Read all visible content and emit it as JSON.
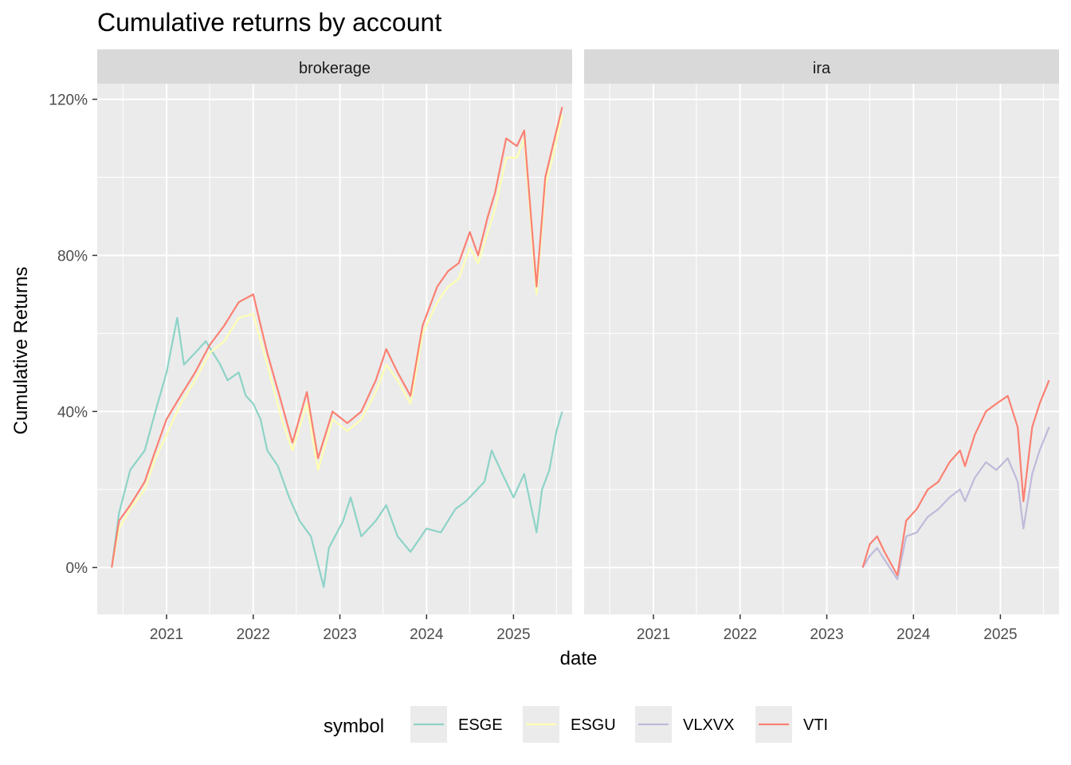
{
  "chart_data": {
    "type": "line",
    "title": "Cumulative returns by account",
    "xlabel": "date",
    "ylabel": "Cumulative Returns",
    "xlim": [
      "2020-03-15",
      "2025-09-05"
    ],
    "ylim": [
      -0.12,
      1.24
    ],
    "x_ticks": [
      "2021",
      "2022",
      "2023",
      "2024",
      "2025"
    ],
    "x_tick_dates": [
      "2021-01-01",
      "2022-01-01",
      "2023-01-01",
      "2024-01-01",
      "2025-01-01"
    ],
    "y_ticks": [
      0,
      0.4,
      0.8,
      1.2
    ],
    "y_tick_labels": [
      "0%",
      "40%",
      "80%",
      "120%"
    ],
    "grid": true,
    "legend": {
      "title": "symbol",
      "position": "bottom",
      "entries": [
        {
          "label": "ESGE",
          "color": "#8dd3c7"
        },
        {
          "label": "ESGU",
          "color": "#ffffb3"
        },
        {
          "label": "VLXVX",
          "color": "#bebada"
        },
        {
          "label": "VTI",
          "color": "#fb8072"
        }
      ]
    },
    "panels": [
      {
        "label": "brokerage",
        "series": [
          {
            "name": "ESGE",
            "color": "#8dd3c7",
            "points": [
              [
                "2020-05-15",
                0.0
              ],
              [
                "2020-06-15",
                0.14
              ],
              [
                "2020-08-01",
                0.25
              ],
              [
                "2020-10-01",
                0.3
              ],
              [
                "2020-11-15",
                0.4
              ],
              [
                "2021-01-01",
                0.5
              ],
              [
                "2021-02-15",
                0.64
              ],
              [
                "2021-03-15",
                0.52
              ],
              [
                "2021-05-01",
                0.55
              ],
              [
                "2021-06-15",
                0.58
              ],
              [
                "2021-08-15",
                0.52
              ],
              [
                "2021-09-15",
                0.48
              ],
              [
                "2021-11-01",
                0.5
              ],
              [
                "2021-12-01",
                0.44
              ],
              [
                "2022-01-01",
                0.42
              ],
              [
                "2022-02-01",
                0.38
              ],
              [
                "2022-03-01",
                0.3
              ],
              [
                "2022-04-15",
                0.26
              ],
              [
                "2022-06-01",
                0.18
              ],
              [
                "2022-07-15",
                0.12
              ],
              [
                "2022-09-01",
                0.08
              ],
              [
                "2022-10-25",
                -0.05
              ],
              [
                "2022-11-15",
                0.05
              ],
              [
                "2023-01-15",
                0.12
              ],
              [
                "2023-02-15",
                0.18
              ],
              [
                "2023-04-01",
                0.08
              ],
              [
                "2023-06-01",
                0.12
              ],
              [
                "2023-07-15",
                0.16
              ],
              [
                "2023-09-01",
                0.08
              ],
              [
                "2023-10-25",
                0.04
              ],
              [
                "2024-01-01",
                0.1
              ],
              [
                "2024-03-01",
                0.09
              ],
              [
                "2024-05-01",
                0.15
              ],
              [
                "2024-06-15",
                0.17
              ],
              [
                "2024-08-01",
                0.2
              ],
              [
                "2024-09-01",
                0.22
              ],
              [
                "2024-10-01",
                0.3
              ],
              [
                "2024-11-15",
                0.24
              ],
              [
                "2025-01-01",
                0.18
              ],
              [
                "2025-02-15",
                0.24
              ],
              [
                "2025-04-08",
                0.09
              ],
              [
                "2025-05-01",
                0.2
              ],
              [
                "2025-06-01",
                0.25
              ],
              [
                "2025-07-01",
                0.35
              ],
              [
                "2025-07-25",
                0.4
              ]
            ]
          },
          {
            "name": "ESGU",
            "color": "#ffffb3",
            "points": [
              [
                "2020-05-15",
                0.0
              ],
              [
                "2020-06-15",
                0.1
              ],
              [
                "2020-08-01",
                0.15
              ],
              [
                "2020-10-01",
                0.2
              ],
              [
                "2020-11-15",
                0.28
              ],
              [
                "2021-01-01",
                0.34
              ],
              [
                "2021-03-01",
                0.42
              ],
              [
                "2021-05-01",
                0.48
              ],
              [
                "2021-07-01",
                0.55
              ],
              [
                "2021-09-01",
                0.58
              ],
              [
                "2021-11-01",
                0.64
              ],
              [
                "2022-01-01",
                0.65
              ],
              [
                "2022-03-01",
                0.52
              ],
              [
                "2022-05-01",
                0.38
              ],
              [
                "2022-06-15",
                0.3
              ],
              [
                "2022-08-15",
                0.42
              ],
              [
                "2022-10-01",
                0.25
              ],
              [
                "2022-12-01",
                0.38
              ],
              [
                "2023-02-01",
                0.35
              ],
              [
                "2023-04-01",
                0.38
              ],
              [
                "2023-06-01",
                0.45
              ],
              [
                "2023-07-15",
                0.52
              ],
              [
                "2023-09-01",
                0.48
              ],
              [
                "2023-10-25",
                0.42
              ],
              [
                "2023-12-15",
                0.6
              ],
              [
                "2024-02-15",
                0.68
              ],
              [
                "2024-04-01",
                0.72
              ],
              [
                "2024-05-15",
                0.74
              ],
              [
                "2024-07-01",
                0.82
              ],
              [
                "2024-08-05",
                0.78
              ],
              [
                "2024-09-15",
                0.86
              ],
              [
                "2024-10-15",
                0.92
              ],
              [
                "2024-12-01",
                1.05
              ],
              [
                "2025-01-15",
                1.05
              ],
              [
                "2025-02-15",
                1.1
              ],
              [
                "2025-04-08",
                0.7
              ],
              [
                "2025-05-15",
                0.98
              ],
              [
                "2025-06-15",
                1.05
              ],
              [
                "2025-07-25",
                1.16
              ]
            ]
          },
          {
            "name": "VTI",
            "color": "#fb8072",
            "points": [
              [
                "2020-05-15",
                0.0
              ],
              [
                "2020-06-15",
                0.12
              ],
              [
                "2020-08-01",
                0.16
              ],
              [
                "2020-10-01",
                0.22
              ],
              [
                "2020-11-15",
                0.3
              ],
              [
                "2021-01-01",
                0.38
              ],
              [
                "2021-03-01",
                0.44
              ],
              [
                "2021-05-01",
                0.5
              ],
              [
                "2021-07-01",
                0.57
              ],
              [
                "2021-09-01",
                0.62
              ],
              [
                "2021-11-01",
                0.68
              ],
              [
                "2022-01-01",
                0.7
              ],
              [
                "2022-03-01",
                0.55
              ],
              [
                "2022-05-01",
                0.42
              ],
              [
                "2022-06-15",
                0.32
              ],
              [
                "2022-08-15",
                0.45
              ],
              [
                "2022-10-01",
                0.28
              ],
              [
                "2022-12-01",
                0.4
              ],
              [
                "2023-02-01",
                0.37
              ],
              [
                "2023-04-01",
                0.4
              ],
              [
                "2023-06-01",
                0.48
              ],
              [
                "2023-07-15",
                0.56
              ],
              [
                "2023-09-01",
                0.5
              ],
              [
                "2023-10-25",
                0.44
              ],
              [
                "2023-12-15",
                0.62
              ],
              [
                "2024-02-15",
                0.72
              ],
              [
                "2024-04-01",
                0.76
              ],
              [
                "2024-05-15",
                0.78
              ],
              [
                "2024-07-01",
                0.86
              ],
              [
                "2024-08-05",
                0.8
              ],
              [
                "2024-09-15",
                0.9
              ],
              [
                "2024-10-15",
                0.96
              ],
              [
                "2024-12-01",
                1.1
              ],
              [
                "2025-01-15",
                1.08
              ],
              [
                "2025-02-15",
                1.12
              ],
              [
                "2025-04-08",
                0.72
              ],
              [
                "2025-05-15",
                1.0
              ],
              [
                "2025-06-15",
                1.08
              ],
              [
                "2025-07-25",
                1.18
              ]
            ]
          }
        ]
      },
      {
        "label": "ira",
        "series": [
          {
            "name": "VLXVX",
            "color": "#bebada",
            "points": [
              [
                "2023-06-01",
                0.0
              ],
              [
                "2023-07-01",
                0.03
              ],
              [
                "2023-08-01",
                0.05
              ],
              [
                "2023-09-01",
                0.02
              ],
              [
                "2023-10-25",
                -0.03
              ],
              [
                "2023-12-01",
                0.08
              ],
              [
                "2024-01-15",
                0.09
              ],
              [
                "2024-03-01",
                0.13
              ],
              [
                "2024-04-15",
                0.15
              ],
              [
                "2024-06-01",
                0.18
              ],
              [
                "2024-07-15",
                0.2
              ],
              [
                "2024-08-05",
                0.17
              ],
              [
                "2024-09-15",
                0.23
              ],
              [
                "2024-11-01",
                0.27
              ],
              [
                "2024-12-15",
                0.25
              ],
              [
                "2025-02-01",
                0.28
              ],
              [
                "2025-03-15",
                0.22
              ],
              [
                "2025-04-08",
                0.1
              ],
              [
                "2025-05-15",
                0.24
              ],
              [
                "2025-06-15",
                0.3
              ],
              [
                "2025-07-25",
                0.36
              ]
            ]
          },
          {
            "name": "VTI",
            "color": "#fb8072",
            "points": [
              [
                "2023-06-01",
                0.0
              ],
              [
                "2023-07-01",
                0.06
              ],
              [
                "2023-08-01",
                0.08
              ],
              [
                "2023-09-01",
                0.04
              ],
              [
                "2023-10-25",
                -0.02
              ],
              [
                "2023-12-01",
                0.12
              ],
              [
                "2024-01-15",
                0.15
              ],
              [
                "2024-03-01",
                0.2
              ],
              [
                "2024-04-15",
                0.22
              ],
              [
                "2024-06-01",
                0.27
              ],
              [
                "2024-07-15",
                0.3
              ],
              [
                "2024-08-05",
                0.26
              ],
              [
                "2024-09-15",
                0.34
              ],
              [
                "2024-11-01",
                0.4
              ],
              [
                "2024-12-15",
                0.42
              ],
              [
                "2025-02-01",
                0.44
              ],
              [
                "2025-03-15",
                0.36
              ],
              [
                "2025-04-08",
                0.17
              ],
              [
                "2025-05-15",
                0.36
              ],
              [
                "2025-06-15",
                0.42
              ],
              [
                "2025-07-25",
                0.48
              ]
            ]
          }
        ]
      }
    ]
  }
}
